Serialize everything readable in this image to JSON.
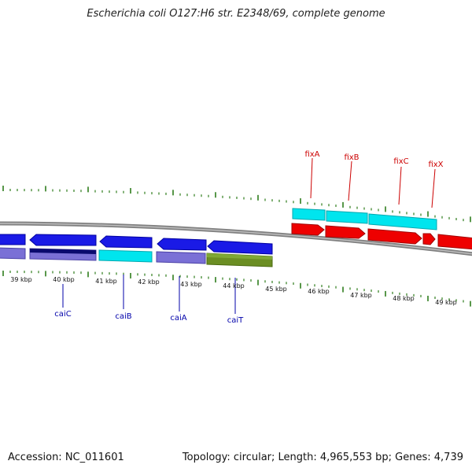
{
  "header": {
    "title": "Escherichia coli O127:H6 str. E2348/69, complete genome"
  },
  "footer": {
    "accession": "Accession: NC_011601",
    "summary": "Topology: circular; Length: 4,965,553 bp; Genes: 4,739"
  },
  "scale": {
    "ticks": [
      {
        "label": "39 kbp"
      },
      {
        "label": "40 kbp"
      },
      {
        "label": "41 kbp"
      },
      {
        "label": "42 kbp"
      },
      {
        "label": "43 kbp"
      },
      {
        "label": "44 kbp"
      },
      {
        "label": "45 kbp"
      },
      {
        "label": "46 kbp"
      },
      {
        "label": "47 kbp"
      },
      {
        "label": "48 kbp"
      },
      {
        "label": "49 kbp"
      }
    ]
  },
  "gene_labels": {
    "fixA": "fixA",
    "fixB": "fixB",
    "fixC": "fixC",
    "fixX": "fixX",
    "caiC": "caiC",
    "caiB": "caiB",
    "caiA": "caiA",
    "caiT": "caiT"
  },
  "colors": {
    "forward_label": "#cc0000",
    "reverse_label": "#0000aa",
    "tick_green": "#2e7d1c",
    "backbone": "#808080",
    "cds_red": "#ee0000",
    "cds_blue": "#1a1ae6",
    "cds_cyan": "#00e5ee",
    "cds_purple": "#7a70d6",
    "cds_navy": "#0a0a6e",
    "cds_olive": "#6b8e23"
  }
}
